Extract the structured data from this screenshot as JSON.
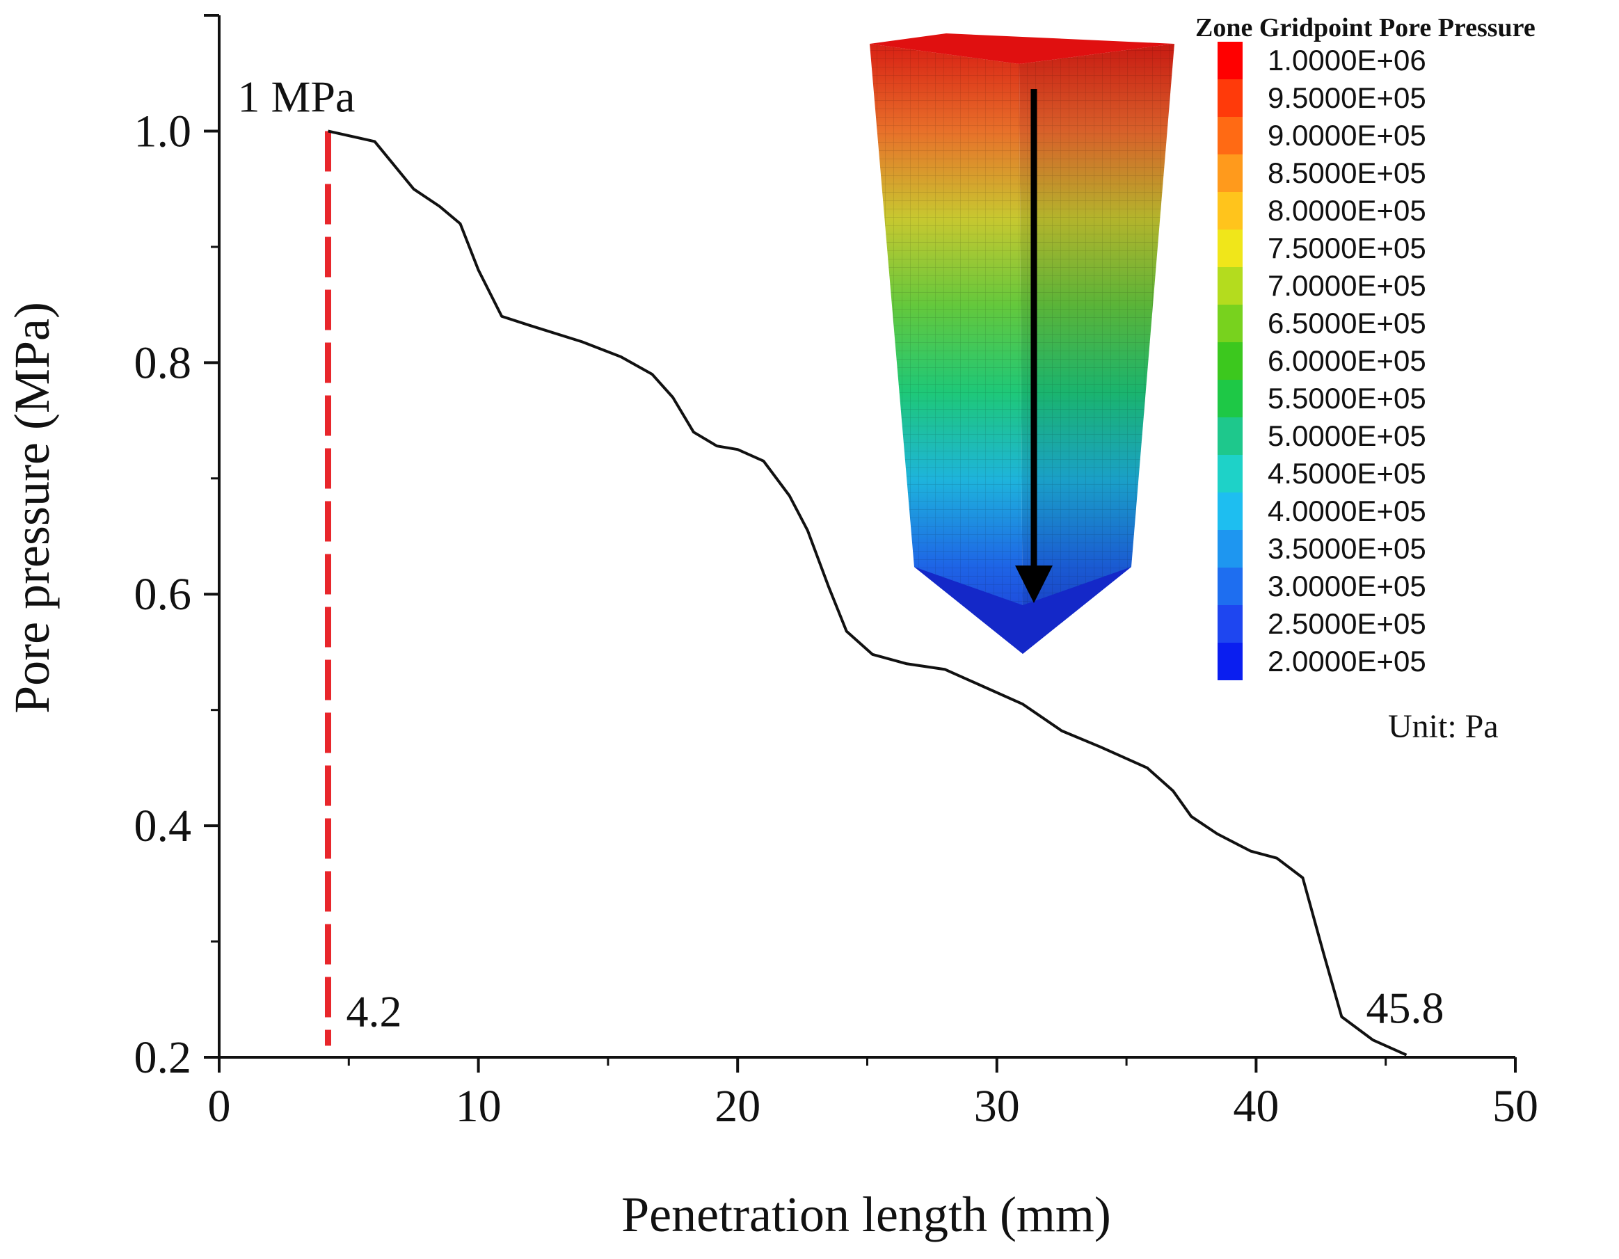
{
  "chart_data": {
    "type": "line",
    "xlabel": "Penetration length (mm)",
    "ylabel": "Pore pressure (MPa)",
    "xlim": [
      0,
      50
    ],
    "ylim": [
      0.2,
      1.1
    ],
    "x_ticks": [
      0,
      10,
      20,
      30,
      40,
      50
    ],
    "x_tick_labels": [
      "0",
      "10",
      "20",
      "30",
      "40",
      "50"
    ],
    "y_ticks": [
      0.2,
      0.4,
      0.6,
      0.8,
      1.0
    ],
    "y_tick_labels": [
      "0.2",
      "0.4",
      "0.6",
      "0.8",
      "1.0"
    ],
    "grid": false,
    "series": [
      {
        "name": "Pore pressure",
        "color": "#111111",
        "x": [
          4.2,
          6.0,
          7.5,
          8.5,
          9.3,
          10.0,
          10.9,
          12.0,
          14.0,
          15.5,
          16.7,
          17.5,
          18.3,
          19.2,
          20.0,
          21.0,
          22.0,
          22.7,
          23.5,
          24.2,
          25.2,
          26.5,
          28.0,
          29.5,
          31.0,
          32.5,
          34.0,
          35.8,
          36.8,
          37.5,
          38.5,
          39.8,
          40.8,
          41.8,
          42.6,
          43.3,
          44.5,
          45.8
        ],
        "y": [
          1.0,
          0.991,
          0.95,
          0.935,
          0.92,
          0.88,
          0.84,
          0.832,
          0.818,
          0.805,
          0.79,
          0.77,
          0.74,
          0.728,
          0.725,
          0.715,
          0.685,
          0.655,
          0.607,
          0.568,
          0.548,
          0.54,
          0.535,
          0.52,
          0.505,
          0.482,
          0.468,
          0.45,
          0.43,
          0.408,
          0.393,
          0.378,
          0.372,
          0.355,
          0.29,
          0.235,
          0.215,
          0.202
        ]
      }
    ],
    "reference_line": {
      "x": 4.2,
      "y_range": [
        0.21,
        1.0
      ],
      "color": "#e8262b",
      "style": "dashed"
    },
    "annotations": [
      {
        "text": "1 MPa",
        "x": 4.2,
        "y": 1.0
      },
      {
        "text": "4.2",
        "x": 4.2,
        "y": 0.21
      },
      {
        "text": "45.8",
        "x": 45.8,
        "y": 0.202
      }
    ]
  },
  "inset": {
    "legend_title": "Zone Gridpoint Pore Pressure",
    "legend_entries": [
      {
        "label": "1.0000E+06",
        "color": "#ff0000"
      },
      {
        "label": "9.5000E+05",
        "color": "#ff3a0a"
      },
      {
        "label": "9.0000E+05",
        "color": "#ff6a14"
      },
      {
        "label": "8.5000E+05",
        "color": "#ff9a1c"
      },
      {
        "label": "8.0000E+05",
        "color": "#ffc41c"
      },
      {
        "label": "7.5000E+05",
        "color": "#f0e61a"
      },
      {
        "label": "7.0000E+05",
        "color": "#b4dc1e"
      },
      {
        "label": "6.5000E+05",
        "color": "#78d21e"
      },
      {
        "label": "6.0000E+05",
        "color": "#3cc81e"
      },
      {
        "label": "5.5000E+05",
        "color": "#1ec846"
      },
      {
        "label": "5.0000E+05",
        "color": "#1ec88c"
      },
      {
        "label": "4.5000E+05",
        "color": "#1ed2c8"
      },
      {
        "label": "4.0000E+05",
        "color": "#1ebef0"
      },
      {
        "label": "3.5000E+05",
        "color": "#1e96f0"
      },
      {
        "label": "3.0000E+05",
        "color": "#1e6ef0"
      },
      {
        "label": "2.5000E+05",
        "color": "#1e46f0"
      },
      {
        "label": "2.0000E+05",
        "color": "#0a1ef0"
      }
    ],
    "unit_label": "Unit: Pa",
    "colors": {
      "top_face": "#e01010",
      "left_face_gradient": [
        "#d82014",
        "#e8702a",
        "#c8c830",
        "#64c83c",
        "#1ec878",
        "#1eb4dc",
        "#1e64e6",
        "#1e32d2"
      ],
      "right_face_gradient": [
        "#c81a12",
        "#d8602a",
        "#b4b42c",
        "#5ab438",
        "#1ab46e",
        "#1aa0c8",
        "#1a5ad2",
        "#1a2cbe"
      ],
      "bottom_face": "#1428c8",
      "arrow": "#000000"
    }
  }
}
